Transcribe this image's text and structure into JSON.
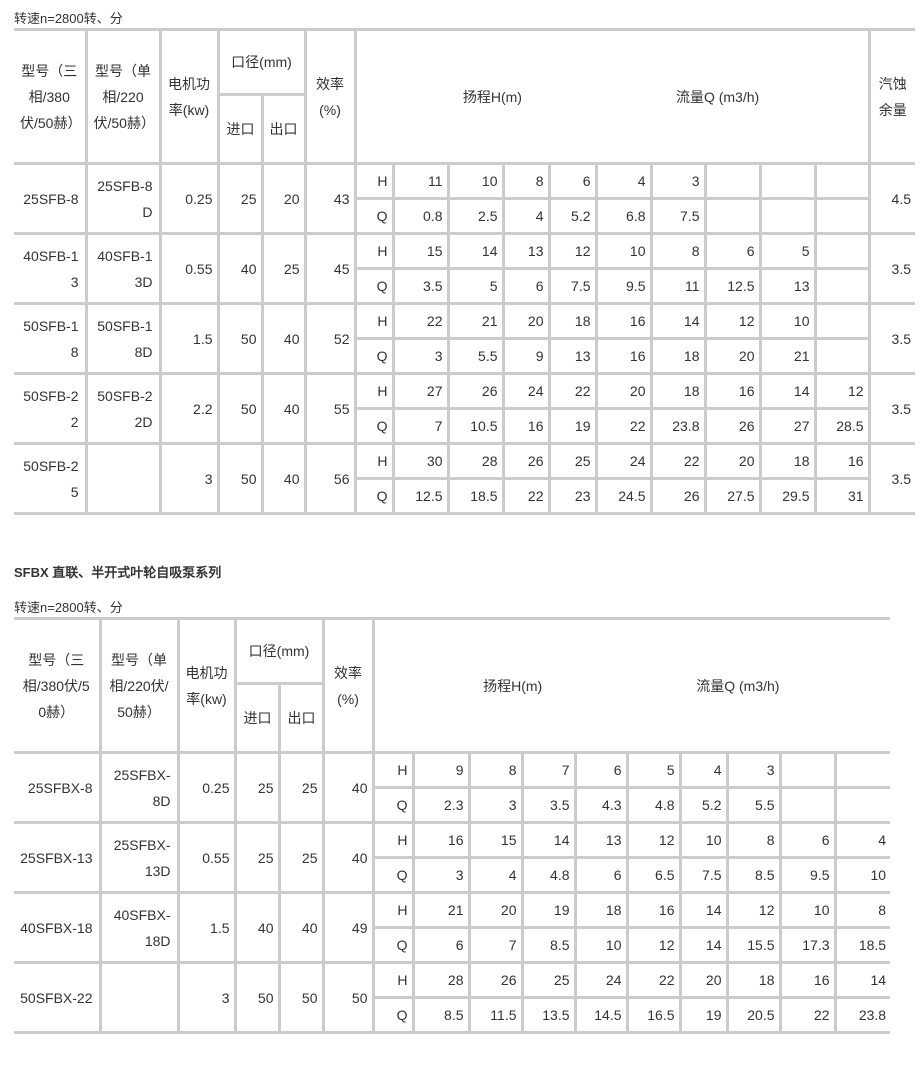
{
  "table1": {
    "speed": "转速n=2800转、分",
    "headers": {
      "model3": "型号（三相/380伏/50赫）",
      "model1": "型号（单相/220伏/50赫）",
      "power": "电机功率(kw)",
      "bore": "口径(mm)",
      "inlet": "进口",
      "outlet": "出口",
      "eff": "效率(%)",
      "head_flow": "扬程H(m)　　　　　　　　　　　流量Q (m3/h)",
      "npsh": "汽蚀余量"
    },
    "rows": [
      {
        "m3": "25SFB-8",
        "m1": "25SFB-8D",
        "kw": "0.25",
        "in": "25",
        "out": "20",
        "eff": "43",
        "H": [
          "11",
          "10",
          "8",
          "6",
          "4",
          "3",
          "",
          "",
          ""
        ],
        "Q": [
          "0.8",
          "2.5",
          "4",
          "5.2",
          "6.8",
          "7.5",
          "",
          "",
          ""
        ],
        "npsh": "4.5"
      },
      {
        "m3": "40SFB-13",
        "m1": "40SFB-13D",
        "kw": "0.55",
        "in": "40",
        "out": "25",
        "eff": "45",
        "H": [
          "15",
          "14",
          "13",
          "12",
          "10",
          "8",
          "6",
          "5",
          ""
        ],
        "Q": [
          "3.5",
          "5",
          "6",
          "7.5",
          "9.5",
          "11",
          "12.5",
          "13",
          ""
        ],
        "npsh": "3.5"
      },
      {
        "m3": "50SFB-18",
        "m1": "50SFB-18D",
        "kw": "1.5",
        "in": "50",
        "out": "40",
        "eff": "52",
        "H": [
          "22",
          "21",
          "20",
          "18",
          "16",
          "14",
          "12",
          "10",
          ""
        ],
        "Q": [
          "3",
          "5.5",
          "9",
          "13",
          "16",
          "18",
          "20",
          "21",
          ""
        ],
        "npsh": "3.5"
      },
      {
        "m3": "50SFB-22",
        "m1": "50SFB-22D",
        "kw": "2.2",
        "in": "50",
        "out": "40",
        "eff": "55",
        "H": [
          "27",
          "26",
          "24",
          "22",
          "20",
          "18",
          "16",
          "14",
          "12"
        ],
        "Q": [
          "7",
          "10.5",
          "16",
          "19",
          "22",
          "23.8",
          "26",
          "27",
          "28.5"
        ],
        "npsh": "3.5"
      },
      {
        "m3": "50SFB-25",
        "m1": "",
        "kw": "3",
        "in": "50",
        "out": "40",
        "eff": "56",
        "H": [
          "30",
          "28",
          "26",
          "25",
          "24",
          "22",
          "20",
          "18",
          "16"
        ],
        "Q": [
          "12.5",
          "18.5",
          "22",
          "23",
          "24.5",
          "26",
          "27.5",
          "29.5",
          "31"
        ],
        "npsh": "3.5"
      }
    ]
  },
  "section2_title": "SFBX 直联、半开式叶轮自吸泵系列",
  "table2": {
    "speed": "转速n=2800转、分",
    "headers": {
      "model3": "型号（三相/380伏/50赫）",
      "model1": "型号（单相/220伏/50赫）",
      "power": "电机功率(kw)",
      "bore": "口径(mm)",
      "inlet": "进口",
      "outlet": "出口",
      "eff": "效率(%)",
      "head_flow": "扬程H(m)　　　　　　　　　　　流量Q (m3/h)"
    },
    "rows": [
      {
        "m3": "25SFBX-8",
        "m1": "25SFBX-8D",
        "kw": "0.25",
        "in": "25",
        "out": "25",
        "eff": "40",
        "H": [
          "9",
          "8",
          "7",
          "6",
          "5",
          "4",
          "3",
          "",
          ""
        ],
        "Q": [
          "2.3",
          "3",
          "3.5",
          "4.3",
          "4.8",
          "5.2",
          "5.5",
          "",
          ""
        ]
      },
      {
        "m3": "25SFBX-13",
        "m1": "25SFBX-13D",
        "kw": "0.55",
        "in": "25",
        "out": "25",
        "eff": "40",
        "H": [
          "16",
          "15",
          "14",
          "13",
          "12",
          "10",
          "8",
          "6",
          "4"
        ],
        "Q": [
          "3",
          "4",
          "4.8",
          "6",
          "6.5",
          "7.5",
          "8.5",
          "9.5",
          "10"
        ]
      },
      {
        "m3": "40SFBX-18",
        "m1": "40SFBX-18D",
        "kw": "1.5",
        "in": "40",
        "out": "40",
        "eff": "49",
        "H": [
          "21",
          "20",
          "19",
          "18",
          "16",
          "14",
          "12",
          "10",
          "8"
        ],
        "Q": [
          "6",
          "7",
          "8.5",
          "10",
          "12",
          "14",
          "15.5",
          "17.3",
          "18.5"
        ]
      },
      {
        "m3": "50SFBX-22",
        "m1": "",
        "kw": "3",
        "in": "50",
        "out": "50",
        "eff": "50",
        "H": [
          "28",
          "26",
          "25",
          "24",
          "22",
          "20",
          "18",
          "16",
          "14"
        ],
        "Q": [
          "8.5",
          "11.5",
          "13.5",
          "14.5",
          "16.5",
          "19",
          "20.5",
          "22",
          "23.8"
        ]
      }
    ]
  }
}
